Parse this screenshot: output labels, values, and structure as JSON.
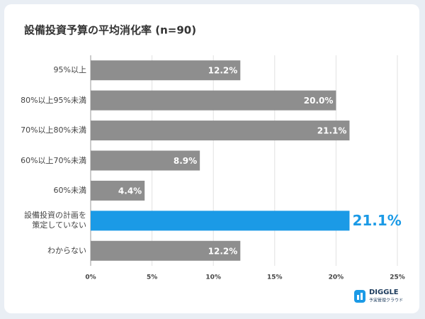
{
  "chart_data": {
    "type": "bar",
    "orientation": "horizontal",
    "title": "設備投資予算の平均消化率 (n=90)",
    "categories": [
      "95%以上",
      "80%以上95%未満",
      "70%以上80%未満",
      "60%以上70%未満",
      "60%未満",
      "設備投資の計画を\n策定していない",
      "わからない"
    ],
    "values": [
      12.2,
      20.0,
      21.1,
      8.9,
      4.4,
      21.1,
      12.2
    ],
    "value_labels": [
      "12.2%",
      "20.0%",
      "21.1%",
      "8.9%",
      "4.4%",
      "21.1%",
      "12.2%"
    ],
    "colors": [
      "#8e8e8e",
      "#8e8e8e",
      "#8e8e8e",
      "#8e8e8e",
      "#8e8e8e",
      "#1b9ae6",
      "#8e8e8e"
    ],
    "xlim": [
      0,
      25
    ],
    "xticks": [
      {
        "value": 0,
        "label": "0%"
      },
      {
        "value": 5,
        "label": "5%"
      },
      {
        "value": 10,
        "label": "10%"
      },
      {
        "value": 15,
        "label": "15%"
      },
      {
        "value": 20,
        "label": "20%"
      },
      {
        "value": 25,
        "label": "25%"
      }
    ],
    "grid": true
  },
  "logo": {
    "name": "DIGGLE",
    "tagline": "予実管理クラウド"
  }
}
